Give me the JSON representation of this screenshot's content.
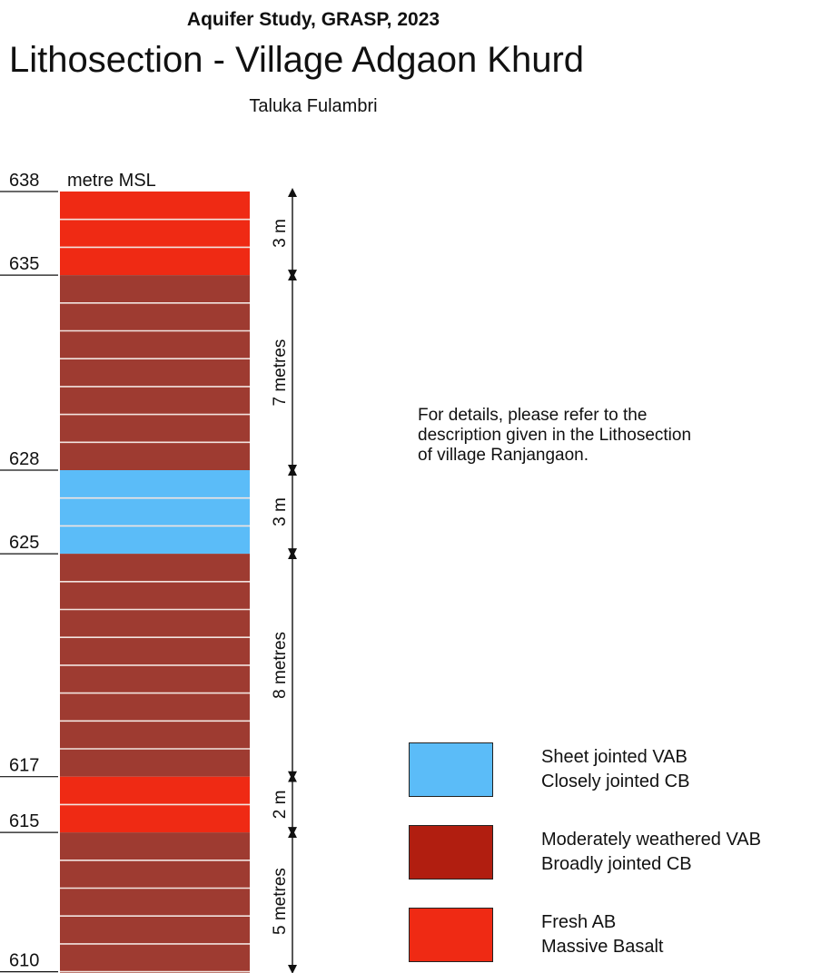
{
  "header": {
    "supertitle": "Aquifer Study, GRASP, 2023",
    "title": "Lithosection - Village Adgaon Khurd",
    "subtitle": "Taluka Fulambri"
  },
  "column": {
    "unit_label": "metre MSL",
    "top_elevation": 638,
    "bottom_elevation_visible": 609,
    "layers": [
      {
        "name": "layer-fresh-ab-top",
        "top": 638,
        "bottom": 635,
        "type": "fresh",
        "dim_label": "3 m"
      },
      {
        "name": "layer-moderately-weathered-upper",
        "top": 635,
        "bottom": 628,
        "type": "weathered",
        "dim_label": "7 metres"
      },
      {
        "name": "layer-sheet-jointed",
        "top": 628,
        "bottom": 625,
        "type": "sheet",
        "dim_label": "3 m"
      },
      {
        "name": "layer-moderately-weathered-middle",
        "top": 625,
        "bottom": 617,
        "type": "weathered",
        "dim_label": "8 metres"
      },
      {
        "name": "layer-fresh-ab-middle",
        "top": 617,
        "bottom": 615,
        "type": "fresh",
        "dim_label": "2 m"
      },
      {
        "name": "layer-moderately-weathered-lower",
        "top": 615,
        "bottom": 610,
        "type": "weathered",
        "dim_label": "5 metres"
      }
    ],
    "elevation_labels": [
      "638",
      "635",
      "628",
      "625",
      "617",
      "615",
      "610"
    ]
  },
  "note": {
    "line1": "For details, please refer to the",
    "line2": "description given in the Lithosection",
    "line3": "of village Ranjangaon."
  },
  "legend": [
    {
      "type": "sheet",
      "line1": "Sheet jointed VAB",
      "line2": "Closely jointed CB"
    },
    {
      "type": "weathered",
      "line1": "Moderately weathered VAB",
      "line2": "Broadly jointed CB"
    },
    {
      "type": "fresh",
      "line1": "Fresh AB",
      "line2": "Massive Basalt"
    }
  ],
  "colors": {
    "fresh": "#ef2a14",
    "weathered": "#9e3b31",
    "sheet": "#5bbcf8",
    "legend_weathered": "#b11e10",
    "divider": "#f2e4e0"
  }
}
